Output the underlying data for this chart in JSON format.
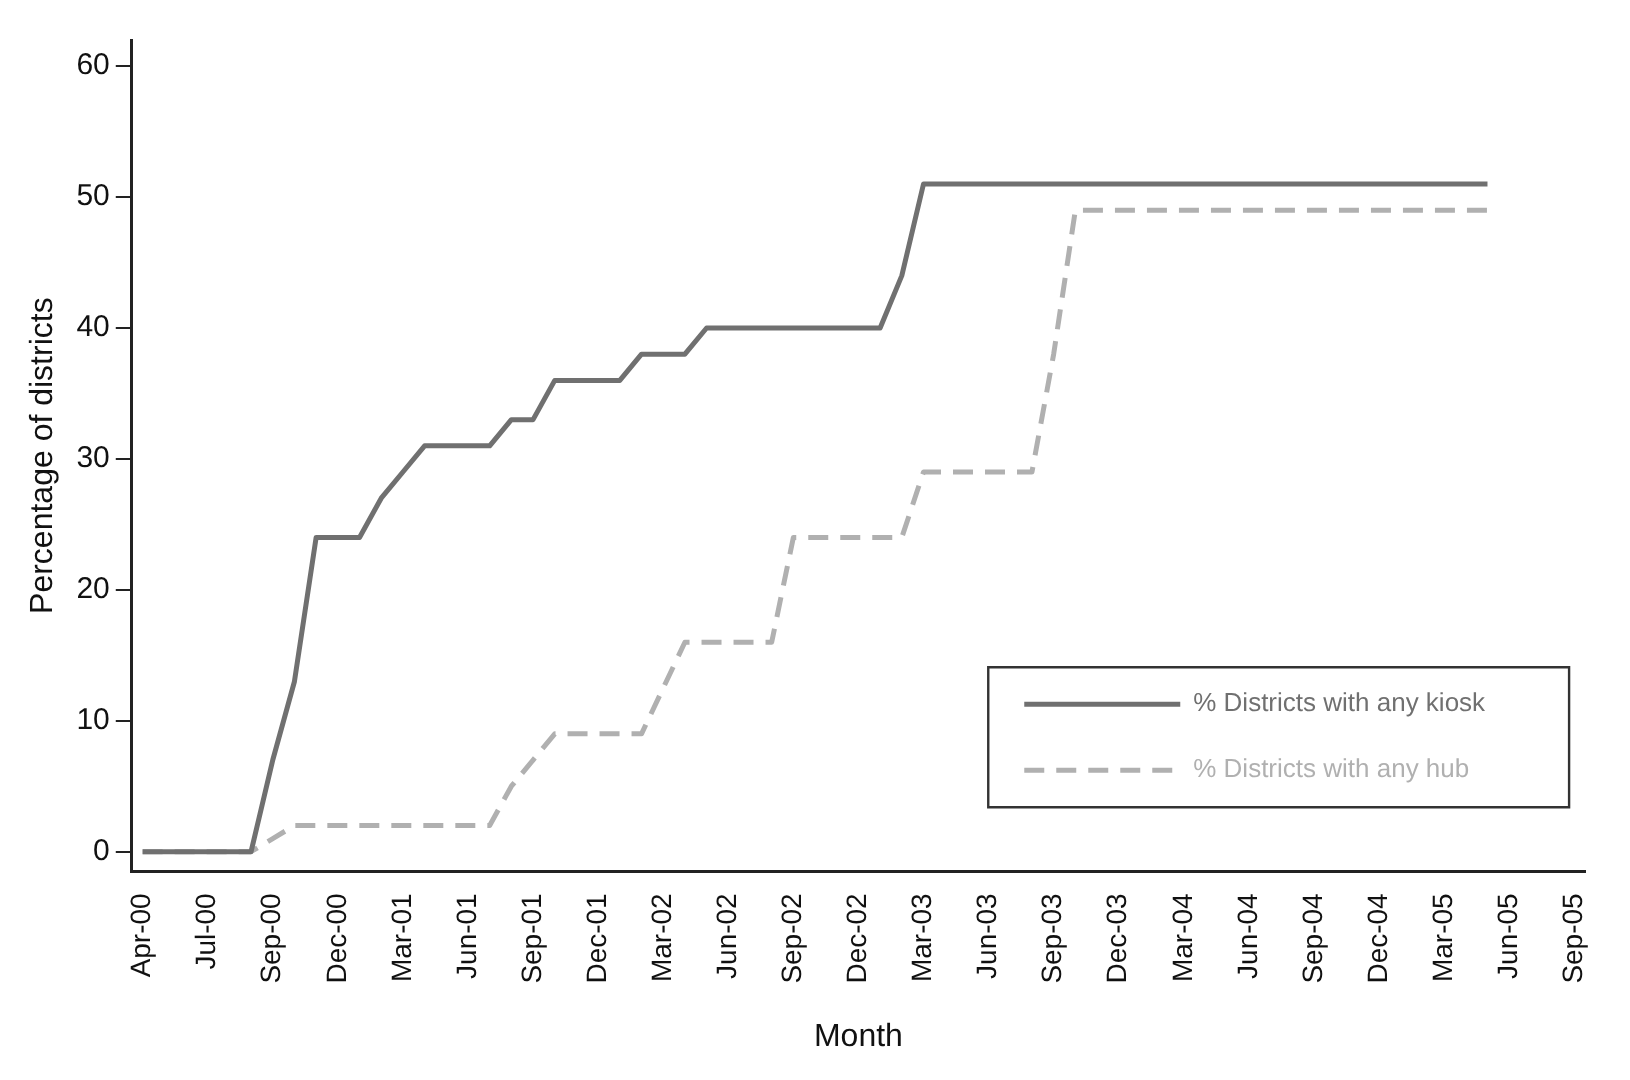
{
  "chart_data": {
    "type": "line",
    "xlabel": "Month",
    "ylabel": "Percentage of districts",
    "categories": [
      "Apr-00",
      null,
      null,
      "Jul-00",
      null,
      null,
      "Sep-00",
      null,
      null,
      "Dec-00",
      null,
      null,
      "Mar-01",
      null,
      null,
      "Jun-01",
      null,
      null,
      "Sep-01",
      null,
      null,
      "Dec-01",
      null,
      null,
      "Mar-02",
      null,
      null,
      "Jun-02",
      null,
      null,
      "Sep-02",
      null,
      null,
      "Dec-02",
      null,
      null,
      "Mar-03",
      null,
      null,
      "Jun-03",
      null,
      null,
      "Sep-03",
      null,
      null,
      "Dec-03",
      null,
      null,
      "Mar-04",
      null,
      null,
      "Jun-04",
      null,
      null,
      "Sep-04",
      null,
      null,
      "Dec-04",
      null,
      null,
      "Mar-05",
      null,
      null,
      "Jun-05",
      null,
      null,
      "Sep-05"
    ],
    "series": [
      {
        "name": "% Districts with any kiosk",
        "color": "#707070",
        "line_style": "solid",
        "values": [
          0,
          0,
          0,
          0,
          0,
          0,
          7,
          13,
          24,
          24,
          24,
          27,
          29,
          31,
          31,
          31,
          31,
          33,
          33,
          36,
          36,
          36,
          36,
          38,
          38,
          38,
          40,
          40,
          40,
          40,
          40,
          40,
          40,
          40,
          40,
          44,
          51,
          51,
          51,
          51,
          51,
          51,
          51,
          51,
          51,
          51,
          51,
          51,
          51,
          51,
          51,
          51,
          51,
          51,
          51,
          51,
          51,
          51,
          51,
          51,
          51,
          51,
          51,
          null,
          null,
          null,
          null
        ]
      },
      {
        "name": "% Districts with any hub",
        "color": "#b0b0b0",
        "line_style": "dashed",
        "values": [
          0,
          0,
          0,
          0,
          0,
          0,
          1,
          2,
          2,
          2,
          2,
          2,
          2,
          2,
          2,
          2,
          2,
          5,
          7,
          9,
          9,
          9,
          9,
          9,
          12.5,
          16,
          16,
          16,
          16,
          16,
          24,
          24,
          24,
          24,
          24,
          24,
          29,
          29,
          29,
          29,
          29,
          29,
          38,
          49,
          49,
          49,
          49,
          49,
          49,
          49,
          49,
          49,
          49,
          49,
          49,
          49,
          49,
          49,
          49,
          49,
          49,
          49,
          49,
          null,
          null,
          null,
          null
        ]
      }
    ],
    "ylim": [
      -1.5,
      62
    ],
    "yticks": [
      0,
      10,
      20,
      30,
      40,
      50,
      60
    ],
    "grid": false,
    "legend": "bottom right",
    "marker": "none"
  }
}
